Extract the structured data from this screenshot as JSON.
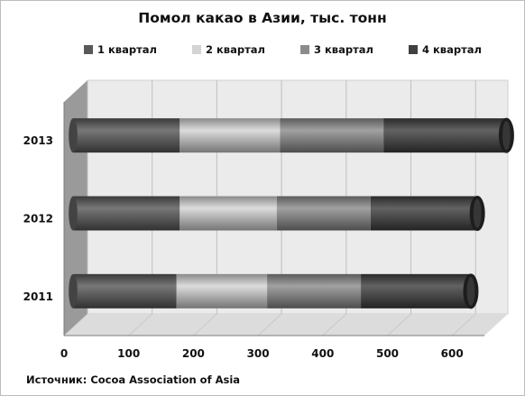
{
  "chart_data": {
    "type": "bar",
    "orientation": "horizontal",
    "stacked": true,
    "style_3d": true,
    "title": "Помол какао в Азии, тыс. тонн",
    "categories": [
      "2011",
      "2012",
      "2013"
    ],
    "series": [
      {
        "name": "1 квартал",
        "values": [
          160,
          165,
          165
        ],
        "color": "#595959"
      },
      {
        "name": "2 квартал",
        "values": [
          140,
          150,
          155
        ],
        "color": "#d4d4d4"
      },
      {
        "name": "3 квартал",
        "values": [
          145,
          145,
          160
        ],
        "color": "#8c8c8c"
      },
      {
        "name": "4 квартал",
        "values": [
          170,
          165,
          190
        ],
        "color": "#404040"
      }
    ],
    "xlim": [
      0,
      650
    ],
    "xticks": [
      "0",
      "100",
      "200",
      "300",
      "400",
      "500",
      "600"
    ],
    "grid": true,
    "legend_position": "top"
  },
  "source_note": "Источник: Cocoa Association of Asia",
  "colors": {
    "back_wall": "#ebebeb",
    "floor": "#dcdcdc",
    "side_wall": "#9a9a9a",
    "gridline": "#bfbfbf"
  }
}
